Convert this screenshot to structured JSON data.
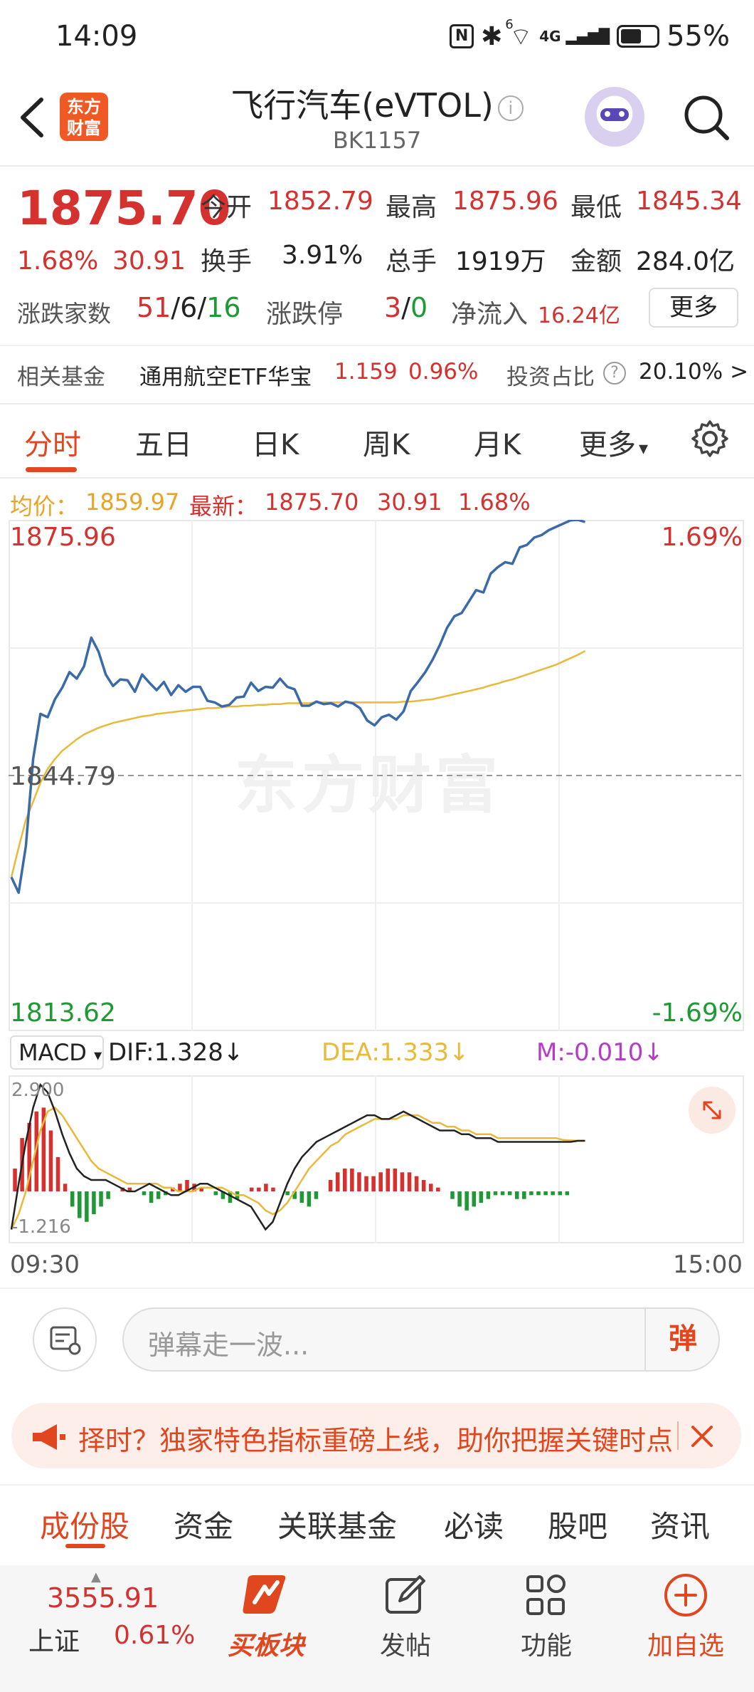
{
  "status_bar": {
    "time": "14:09",
    "battery": "55%",
    "network": "4G",
    "wifi_sup": "6"
  },
  "header": {
    "logo_line1": "东方",
    "logo_line2": "财富",
    "title": "飞行汽车(eVTOL)",
    "code": "BK1157",
    "icons": [
      "back-arrow-icon",
      "info-icon",
      "robot-avatar-icon",
      "search-icon"
    ]
  },
  "quote": {
    "price": "1875.70",
    "change_pct": "1.68%",
    "change": "30.91",
    "open_label": "今开",
    "open": "1852.79",
    "high_label": "最高",
    "high": "1875.96",
    "low_label": "最低",
    "low": "1845.34",
    "turnover_label": "换手",
    "turnover": "3.91%",
    "volume_label": "总手",
    "volume": "1919万",
    "amount_label": "金额",
    "amount": "284.0亿",
    "updown_label": "涨跌家数",
    "up": "51",
    "flat": "6",
    "down": "16",
    "sep": "/",
    "limit_label": "涨跌停",
    "limit_up": "3",
    "limit_down": "0",
    "netflow_label": "净流入",
    "netflow": "16.24亿",
    "more_label": "更多"
  },
  "fund": {
    "label": "相关基金",
    "name": "通用航空ETF华宝",
    "price": "1.159",
    "pct": "0.96%",
    "ratio_label": "投资占比",
    "ratio": "20.10%",
    "arrow": ">"
  },
  "tabs": {
    "items": [
      "分时",
      "五日",
      "日K",
      "周K",
      "月K",
      "更多"
    ],
    "active": "分时",
    "more_caret": "▾"
  },
  "summary": {
    "avg_label": "均价：",
    "avg": "1859.97",
    "latest_label": "最新：",
    "latest": "1875.70",
    "change": "30.91",
    "pct": "1.68%"
  },
  "chart_data": {
    "type": "line",
    "x_start": "09:30",
    "x_end": "15:00",
    "ylim": [
      1813.62,
      1875.96
    ],
    "y_top_label": "1875.96",
    "y_mid_label": "1844.79",
    "y_bottom_label": "1813.62",
    "pct_top_label": "1.69%",
    "pct_bottom_label": "-1.69%",
    "baseline": 1844.79,
    "watermark": "东方财富",
    "series": [
      {
        "name": "price",
        "color": "#3a6aa8",
        "values": [
          1832.4,
          1830.5,
          1836.2,
          1846.8,
          1852.3,
          1851.9,
          1854.1,
          1855.5,
          1857.4,
          1856.6,
          1858.1,
          1861.6,
          1859.9,
          1857.1,
          1855.7,
          1856.5,
          1856.4,
          1855.0,
          1857.1,
          1856.1,
          1855.2,
          1856.2,
          1854.6,
          1855.8,
          1855.0,
          1855.6,
          1855.6,
          1853.9,
          1853.7,
          1853.2,
          1853.4,
          1854.3,
          1854.4,
          1856.1,
          1855.1,
          1855.6,
          1855.5,
          1856.6,
          1855.6,
          1855.3,
          1853.3,
          1853.3,
          1853.8,
          1853.5,
          1853.6,
          1853.2,
          1853.8,
          1853.6,
          1853.0,
          1851.5,
          1850.9,
          1851.9,
          1852.2,
          1851.6,
          1852.6,
          1855.1,
          1856.2,
          1857.4,
          1858.9,
          1860.7,
          1862.8,
          1864.2,
          1864.6,
          1866.0,
          1867.4,
          1867.1,
          1869.4,
          1870.2,
          1870.8,
          1870.6,
          1872.6,
          1872.9,
          1873.8,
          1874.1,
          1874.7,
          1875.1,
          1875.5,
          1875.9,
          1875.96,
          1875.7
        ]
      },
      {
        "name": "avg",
        "color": "#e9b93a",
        "values": [
          1832.4,
          1836.0,
          1839.4,
          1841.6,
          1843.9,
          1845.6,
          1846.8,
          1847.8,
          1848.5,
          1849.2,
          1849.8,
          1850.2,
          1850.6,
          1850.9,
          1851.2,
          1851.4,
          1851.6,
          1851.8,
          1852.0,
          1852.1,
          1852.3,
          1852.4,
          1852.5,
          1852.6,
          1852.7,
          1852.8,
          1852.9,
          1853.0,
          1853.0,
          1853.1,
          1853.2,
          1853.2,
          1853.3,
          1853.3,
          1853.4,
          1853.4,
          1853.5,
          1853.5,
          1853.6,
          1853.6,
          1853.6,
          1853.6,
          1853.7,
          1853.7,
          1853.7,
          1853.7,
          1853.7,
          1853.7,
          1853.7,
          1853.7,
          1853.7,
          1853.7,
          1853.7,
          1853.7,
          1853.8,
          1853.8,
          1853.9,
          1854.0,
          1854.1,
          1854.3,
          1854.5,
          1854.7,
          1854.9,
          1855.1,
          1855.3,
          1855.5,
          1855.8,
          1856.0,
          1856.3,
          1856.5,
          1856.8,
          1857.1,
          1857.4,
          1857.7,
          1858.0,
          1858.3,
          1858.7,
          1859.1,
          1859.5,
          1859.97
        ]
      }
    ]
  },
  "macd": {
    "selector": "MACD",
    "caret": "▾",
    "dif_label": "DIF:1.328↓",
    "dea_label": "DEA:1.333↓",
    "m_label": "M:-0.010↓",
    "dif_color": "#222222",
    "dea_color": "#e9b93a",
    "m_color": "#b63bc8",
    "top_label": "2.900",
    "bottom_label": "-1.216",
    "ylim": [
      -1.216,
      2.9
    ],
    "hist": [
      0.6,
      1.4,
      1.8,
      2.1,
      2.2,
      1.6,
      0.9,
      0.2,
      -0.4,
      -0.7,
      -0.8,
      -0.6,
      -0.4,
      -0.2,
      0.0,
      0.1,
      0.1,
      0.0,
      -0.1,
      -0.3,
      -0.2,
      -0.1,
      0.1,
      0.2,
      0.3,
      0.2,
      0.1,
      0.0,
      -0.1,
      -0.2,
      -0.3,
      -0.2,
      0.0,
      0.1,
      0.1,
      0.2,
      0.1,
      0.0,
      -0.1,
      -0.2,
      -0.3,
      -0.4,
      -0.2,
      0.0,
      0.3,
      0.5,
      0.6,
      0.6,
      0.5,
      0.4,
      0.4,
      0.5,
      0.6,
      0.6,
      0.5,
      0.5,
      0.4,
      0.3,
      0.2,
      0.1,
      0.0,
      -0.2,
      -0.4,
      -0.5,
      -0.4,
      -0.3,
      -0.2,
      -0.1,
      -0.1,
      -0.1,
      -0.2,
      -0.2,
      -0.1,
      -0.1,
      -0.1,
      -0.1,
      -0.1,
      -0.1,
      0.0,
      0.0
    ],
    "dif": [
      -1.0,
      0.2,
      1.3,
      2.2,
      2.8,
      2.6,
      2.1,
      1.5,
      1.0,
      0.6,
      0.4,
      0.3,
      0.3,
      0.3,
      0.2,
      0.1,
      0.0,
      0.0,
      0.1,
      0.2,
      0.1,
      0.0,
      -0.1,
      -0.1,
      0.0,
      0.1,
      0.2,
      0.2,
      0.1,
      0.0,
      -0.1,
      -0.2,
      -0.3,
      -0.4,
      -0.7,
      -1.0,
      -0.8,
      -0.3,
      0.2,
      0.6,
      0.9,
      1.1,
      1.3,
      1.4,
      1.5,
      1.6,
      1.7,
      1.8,
      1.9,
      2.0,
      2.0,
      1.9,
      1.9,
      2.0,
      2.1,
      2.0,
      1.9,
      1.8,
      1.7,
      1.6,
      1.6,
      1.6,
      1.5,
      1.5,
      1.4,
      1.4,
      1.4,
      1.3,
      1.3,
      1.3,
      1.3,
      1.3,
      1.3,
      1.3,
      1.3,
      1.3,
      1.3,
      1.3,
      1.328,
      1.328
    ],
    "dea": [
      -1.0,
      -0.6,
      0.0,
      0.8,
      1.6,
      2.1,
      2.2,
      2.0,
      1.7,
      1.4,
      1.1,
      0.8,
      0.6,
      0.5,
      0.4,
      0.3,
      0.2,
      0.2,
      0.2,
      0.2,
      0.2,
      0.1,
      0.1,
      0.0,
      0.0,
      0.0,
      0.1,
      0.1,
      0.1,
      0.1,
      0.0,
      -0.1,
      -0.1,
      -0.2,
      -0.3,
      -0.5,
      -0.6,
      -0.5,
      -0.3,
      0.0,
      0.3,
      0.6,
      0.8,
      1.0,
      1.2,
      1.3,
      1.5,
      1.6,
      1.7,
      1.8,
      1.9,
      1.9,
      1.9,
      1.9,
      2.0,
      2.0,
      2.0,
      1.9,
      1.8,
      1.8,
      1.7,
      1.7,
      1.6,
      1.6,
      1.5,
      1.5,
      1.5,
      1.4,
      1.4,
      1.4,
      1.4,
      1.4,
      1.4,
      1.4,
      1.4,
      1.4,
      1.35,
      1.34,
      1.333,
      1.333
    ]
  },
  "danmaku": {
    "placeholder": "弹幕走一波...",
    "send": "弹"
  },
  "banner": {
    "text": "择时？独家特色指标重磅上线，助你把握关键时点"
  },
  "bottom_tabs": {
    "items": [
      "成份股",
      "资金",
      "关联基金",
      "必读",
      "股吧",
      "资讯"
    ],
    "active": "成份股"
  },
  "nav": {
    "index_value": "3555.91",
    "index_name": "上证",
    "index_pct": "0.61%",
    "buy_label": "买板块",
    "post_label": "发帖",
    "func_label": "功能",
    "add_label": "加自选"
  },
  "colors": {
    "up": "#d4312f",
    "down": "#1d9a33",
    "accent": "#e0471e",
    "avg_line": "#e9b93a",
    "price_line": "#3a6aa8"
  }
}
